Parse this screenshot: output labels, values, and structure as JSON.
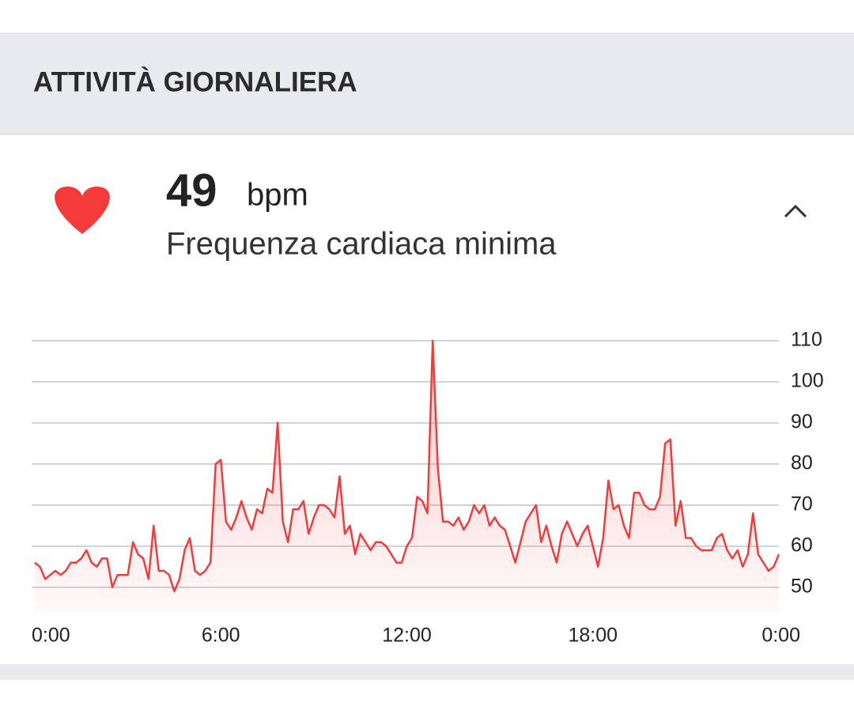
{
  "header": {
    "title": "ATTIVITÀ GIORNALIERA"
  },
  "card": {
    "value": "49",
    "unit": "bpm",
    "label": "Frequenza cardiaca minima"
  },
  "chart_data": {
    "type": "line",
    "x": [
      0,
      10,
      20,
      30,
      40,
      50,
      60,
      70,
      80,
      90,
      100,
      110,
      120,
      130,
      140,
      150,
      160,
      170,
      180,
      190,
      200,
      210,
      220,
      230,
      240,
      250,
      260,
      270,
      280,
      290,
      300,
      310,
      320,
      330,
      340,
      350,
      360,
      370,
      380,
      390,
      400,
      410,
      420,
      430,
      440,
      450,
      460,
      470,
      480,
      490,
      500,
      510,
      520,
      530,
      540,
      550,
      560,
      570,
      580,
      590,
      600,
      610,
      620,
      630,
      640,
      650,
      660,
      670,
      680,
      690,
      700,
      710,
      720,
      730,
      740,
      750,
      760,
      770,
      780,
      790,
      800,
      810,
      820,
      830,
      840,
      850,
      860,
      870,
      880,
      890,
      900,
      910,
      920,
      930,
      940,
      950,
      960,
      970,
      980,
      990,
      1000,
      1010,
      1020,
      1030,
      1040,
      1050,
      1060,
      1070,
      1080,
      1090,
      1100,
      1110,
      1120,
      1130,
      1140,
      1150,
      1160,
      1170,
      1180,
      1190,
      1200,
      1210,
      1220,
      1230,
      1240,
      1250,
      1260,
      1270,
      1280,
      1290,
      1300,
      1310,
      1320,
      1330,
      1340,
      1350,
      1360,
      1370,
      1380,
      1390,
      1400,
      1410,
      1420,
      1430,
      1440
    ],
    "series": [
      {
        "color": "#f23c3c",
        "values": [
          56,
          55,
          52,
          53,
          54,
          53,
          54,
          56,
          56,
          57,
          59,
          56,
          55,
          57,
          57,
          50,
          53,
          53,
          53,
          61,
          58,
          57,
          52,
          65,
          54,
          54,
          53,
          49,
          52,
          59,
          62,
          54,
          53,
          54,
          56,
          80,
          81,
          66,
          64,
          67,
          71,
          67,
          64,
          69,
          68,
          74,
          73,
          90,
          66,
          61,
          69,
          69,
          71,
          63,
          67,
          70,
          70,
          69,
          67,
          77,
          63,
          65,
          58,
          63,
          61,
          59,
          61,
          61,
          60,
          58,
          56,
          56,
          60,
          62,
          72,
          71,
          68,
          110,
          79,
          66,
          66,
          65,
          67,
          64,
          66,
          70,
          68,
          70,
          65,
          67,
          65,
          64,
          60,
          56,
          61,
          66,
          68,
          70,
          61,
          65,
          60,
          56,
          63,
          66,
          63,
          60,
          63,
          65,
          60,
          55,
          62,
          76,
          69,
          70,
          65,
          62,
          73,
          73,
          70,
          69,
          69,
          72,
          85,
          86,
          65,
          71,
          62,
          62,
          60,
          59,
          59,
          59,
          62,
          63,
          59,
          57,
          59,
          55,
          58,
          68,
          58,
          56,
          54,
          55,
          58
        ]
      }
    ],
    "xlim": [
      0,
      1440
    ],
    "xticks": [
      {
        "value": 0,
        "label": "0:00"
      },
      {
        "value": 360,
        "label": "6:00"
      },
      {
        "value": 720,
        "label": "12:00"
      },
      {
        "value": 1080,
        "label": "18:00"
      },
      {
        "value": 1440,
        "label": "0:00"
      }
    ],
    "ylim": [
      44,
      110
    ],
    "yticks": [
      50,
      60,
      70,
      80,
      90,
      100,
      110
    ],
    "grid": true
  }
}
